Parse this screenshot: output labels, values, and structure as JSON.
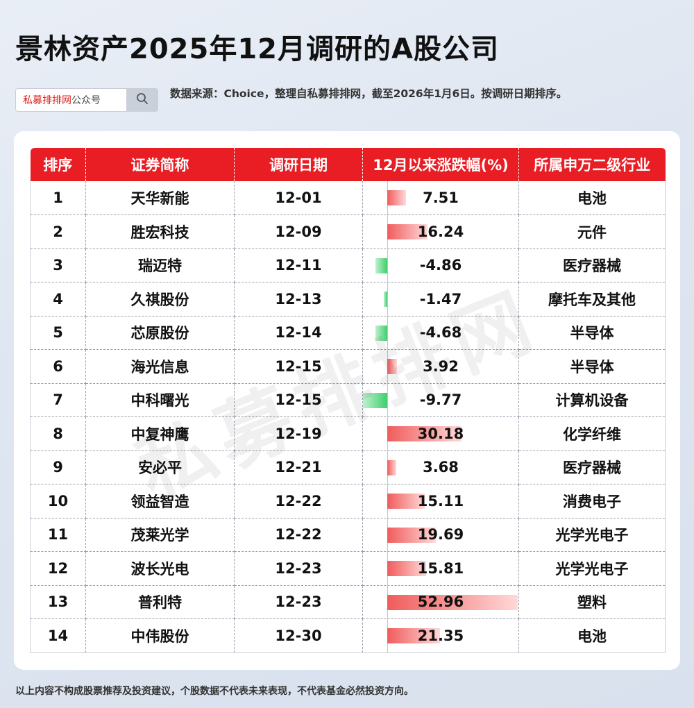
{
  "title": "景林资产2025年12月调研的A股公司",
  "search": {
    "brand_red": "私募排排网",
    "brand_gray": "公众号",
    "icon": "search-icon"
  },
  "source_note": "数据来源：Choice，整理自私募排排网，截至2026年1月6日。按调研日期排序。",
  "watermark": "私募排排网",
  "colors": {
    "header_red": "#e81e24",
    "positive_bar": "#f05c5c",
    "negative_bar": "#3fcf6c"
  },
  "table": {
    "headers": [
      "排序",
      "证券简称",
      "调研日期",
      "12月以来涨跌幅(%)",
      "所属申万二级行业"
    ],
    "rows": [
      {
        "rank": "1",
        "name": "天华新能",
        "date": "12-01",
        "change": "7.51",
        "industry": "电池"
      },
      {
        "rank": "2",
        "name": "胜宏科技",
        "date": "12-09",
        "change": "16.24",
        "industry": "元件"
      },
      {
        "rank": "3",
        "name": "瑞迈特",
        "date": "12-11",
        "change": "-4.86",
        "industry": "医疗器械"
      },
      {
        "rank": "4",
        "name": "久祺股份",
        "date": "12-13",
        "change": "-1.47",
        "industry": "摩托车及其他"
      },
      {
        "rank": "5",
        "name": "芯原股份",
        "date": "12-14",
        "change": "-4.68",
        "industry": "半导体"
      },
      {
        "rank": "6",
        "name": "海光信息",
        "date": "12-15",
        "change": "3.92",
        "industry": "半导体"
      },
      {
        "rank": "7",
        "name": "中科曙光",
        "date": "12-15",
        "change": "-9.77",
        "industry": "计算机设备"
      },
      {
        "rank": "8",
        "name": "中复神鹰",
        "date": "12-19",
        "change": "30.18",
        "industry": "化学纤维"
      },
      {
        "rank": "9",
        "name": "安必平",
        "date": "12-21",
        "change": "3.68",
        "industry": "医疗器械"
      },
      {
        "rank": "10",
        "name": "领益智造",
        "date": "12-22",
        "change": "15.11",
        "industry": "消费电子"
      },
      {
        "rank": "11",
        "name": "茂莱光学",
        "date": "12-22",
        "change": "19.69",
        "industry": "光学光电子"
      },
      {
        "rank": "12",
        "name": "波长光电",
        "date": "12-23",
        "change": "15.81",
        "industry": "光学光电子"
      },
      {
        "rank": "13",
        "name": "普利特",
        "date": "12-23",
        "change": "52.96",
        "industry": "塑料"
      },
      {
        "rank": "14",
        "name": "中伟股份",
        "date": "12-30",
        "change": "21.35",
        "industry": "电池"
      }
    ]
  },
  "footer": "以上内容不构成股票推荐及投资建议，个股数据不代表未来表现，不代表基金必然投资方向。"
}
